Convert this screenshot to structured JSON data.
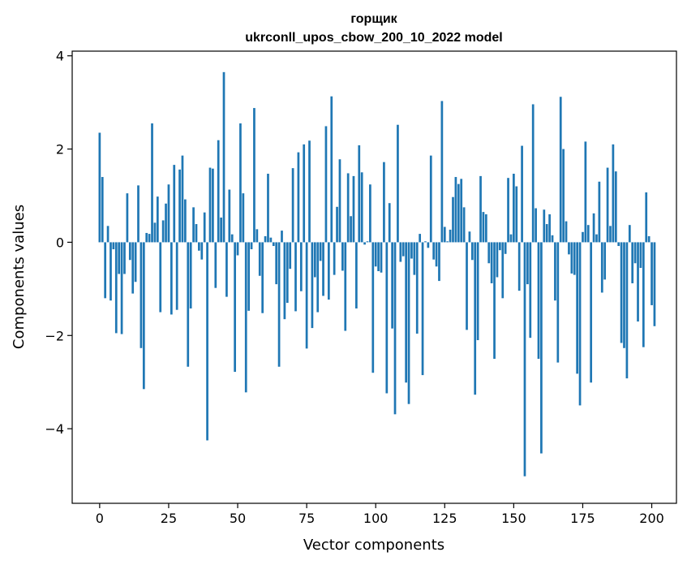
{
  "chart_data": {
    "type": "bar",
    "title_line1": "горщик",
    "title_line2": "ukrconll_upos_cbow_200_10_2022 model",
    "xlabel": "Vector components",
    "ylabel": "Components values",
    "xlim": [
      -9.95,
      208.95
    ],
    "ylim": [
      -5.6,
      4.1
    ],
    "xticks": [
      0,
      25,
      50,
      75,
      100,
      125,
      150,
      175,
      200
    ],
    "xtick_labels": [
      "0",
      "25",
      "50",
      "75",
      "100",
      "125",
      "150",
      "175",
      "200"
    ],
    "yticks": [
      -4,
      -2,
      0,
      2,
      4
    ],
    "ytick_labels": [
      "−4",
      "−2",
      "0",
      "2",
      "4"
    ],
    "bar_color": "#1f77b4",
    "values": [
      2.35,
      1.4,
      -1.2,
      0.35,
      -1.25,
      -0.15,
      -1.95,
      -0.68,
      -1.97,
      -0.68,
      1.05,
      -0.38,
      -1.1,
      -0.85,
      1.22,
      -2.27,
      -3.15,
      0.2,
      0.18,
      2.55,
      0.42,
      0.98,
      -1.5,
      0.47,
      0.83,
      1.24,
      -1.55,
      1.66,
      -1.45,
      1.56,
      1.86,
      0.92,
      -2.67,
      -1.42,
      0.75,
      0.39,
      -0.18,
      -0.37,
      0.64,
      -4.25,
      1.6,
      1.58,
      -0.98,
      2.19,
      0.53,
      3.65,
      -1.17,
      1.13,
      0.17,
      -2.78,
      -0.28,
      2.55,
      1.05,
      -3.22,
      -1.47,
      -0.15,
      2.88,
      0.28,
      -0.72,
      -1.52,
      0.13,
      1.47,
      0.1,
      -0.08,
      -0.9,
      -2.67,
      0.25,
      -1.65,
      -1.3,
      -0.57,
      1.59,
      -1.48,
      1.93,
      -1.05,
      2.1,
      -2.28,
      2.18,
      -1.84,
      -0.75,
      -1.5,
      -0.4,
      -1.15,
      2.49,
      -1.23,
      3.13,
      -0.7,
      0.76,
      1.78,
      -0.61,
      -1.9,
      1.48,
      0.56,
      1.42,
      -1.42,
      2.08,
      1.5,
      -0.05,
      0.02,
      1.24,
      -2.8,
      -0.52,
      -0.62,
      -0.65,
      1.72,
      -3.24,
      0.84,
      -1.85,
      -3.69,
      2.52,
      -0.42,
      -0.3,
      -3.01,
      -3.47,
      -0.35,
      -0.7,
      -1.96,
      0.18,
      -2.85,
      0.02,
      -0.12,
      1.86,
      -0.37,
      -0.52,
      -0.83,
      3.03,
      0.33,
      0.02,
      0.27,
      0.97,
      1.4,
      1.25,
      1.36,
      0.75,
      -1.88,
      0.23,
      -0.38,
      -3.27,
      -2.1,
      1.42,
      0.65,
      0.6,
      -0.45,
      -0.88,
      -2.5,
      -0.75,
      -0.17,
      -1.2,
      -0.25,
      1.38,
      0.17,
      1.47,
      1.2,
      -1.04,
      2.07,
      -5.02,
      -0.9,
      -2.05,
      2.96,
      0.73,
      -2.5,
      -4.53,
      0.7,
      0.39,
      0.6,
      0.15,
      -1.25,
      -2.58,
      3.12,
      2.0,
      0.45,
      -0.26,
      -0.67,
      -0.7,
      -2.82,
      -3.5,
      0.22,
      2.16,
      0.37,
      -3.01,
      0.62,
      0.17,
      1.3,
      -1.08,
      -0.8,
      1.6,
      0.35,
      2.1,
      1.52,
      -0.08,
      -2.16,
      -2.27,
      -2.92,
      0.37,
      -0.88,
      -0.45,
      -1.7,
      -0.55,
      -2.25,
      1.07,
      0.13,
      -1.35,
      -1.8
    ]
  }
}
